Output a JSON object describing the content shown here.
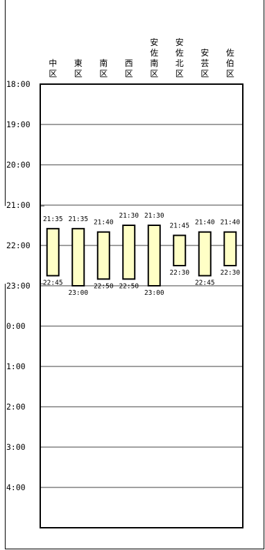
{
  "chart_data": {
    "type": "bar",
    "orientation": "floating-vertical",
    "categories": [
      "中区",
      "東区",
      "南区",
      "西区",
      "安佐南区",
      "安佐北区",
      "安芸区",
      "佐伯区"
    ],
    "series": [
      {
        "start": [
          "21:35",
          "21:35",
          "21:40",
          "21:30",
          "21:30",
          "21:45",
          "21:40",
          "21:40"
        ],
        "end": [
          "22:45",
          "23:00",
          "22:50",
          "22:50",
          "23:00",
          "22:30",
          "22:45",
          "22:30"
        ]
      }
    ],
    "y_ticks": [
      "18:00",
      "19:00",
      "20:00",
      "21:00",
      "22:00",
      "23:00",
      "0:00",
      "1:00",
      "2:00",
      "3:00",
      "4:00"
    ],
    "y_range_hours": [
      18,
      29
    ],
    "grid": true,
    "colors": {
      "bar_fill": "#ffffc6",
      "bar_stroke": "#000000",
      "grid": "#000000"
    }
  }
}
